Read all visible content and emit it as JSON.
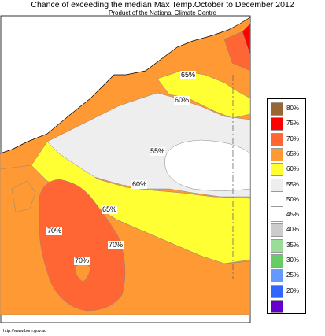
{
  "title": "Chance of exceeding the median Max Temp.October to December 2012",
  "subtitle": "Product of the National Climate Centre",
  "credit": "http://www.bom.gov.au",
  "colors": {
    "sea": "#ffffff",
    "band_80": "#996633",
    "band_75": "#ff0000",
    "band_70": "#ff6633",
    "band_65": "#ff9933",
    "band_60": "#ffff33",
    "band_55": "#eeeeee",
    "band_50": "#ffffff",
    "band_45": "#ffffff",
    "band_40": "#cccccc",
    "band_35": "#99dd99",
    "band_30": "#66cc66",
    "band_25": "#6699ff",
    "band_20": "#3366ff",
    "band_15": "#6600cc"
  },
  "legend": {
    "items": [
      {
        "label": "80%",
        "color": "#996633"
      },
      {
        "label": "75%",
        "color": "#ff0000"
      },
      {
        "label": "70%",
        "color": "#ff6633"
      },
      {
        "label": "65%",
        "color": "#ff9933"
      },
      {
        "label": "60%",
        "color": "#ffff33"
      },
      {
        "label": "55%",
        "color": "#eeeeee"
      },
      {
        "label": "50%",
        "color": "#ffffff"
      },
      {
        "label": "45%",
        "color": "#ffffff"
      },
      {
        "label": "40%",
        "color": "#cccccc"
      },
      {
        "label": "35%",
        "color": "#99dd99"
      },
      {
        "label": "30%",
        "color": "#66cc66"
      },
      {
        "label": "25%",
        "color": "#6699ff"
      },
      {
        "label": "20%",
        "color": "#3366ff"
      },
      {
        "label": "",
        "color": "#6600cc"
      }
    ]
  },
  "map_labels": {
    "north_65": "65%",
    "north_60": "60%",
    "central_55": "55%",
    "central_60": "60%",
    "south_65": "65%",
    "west_70": "70%",
    "sw_70a": "70%",
    "sw_70b": "70%"
  }
}
